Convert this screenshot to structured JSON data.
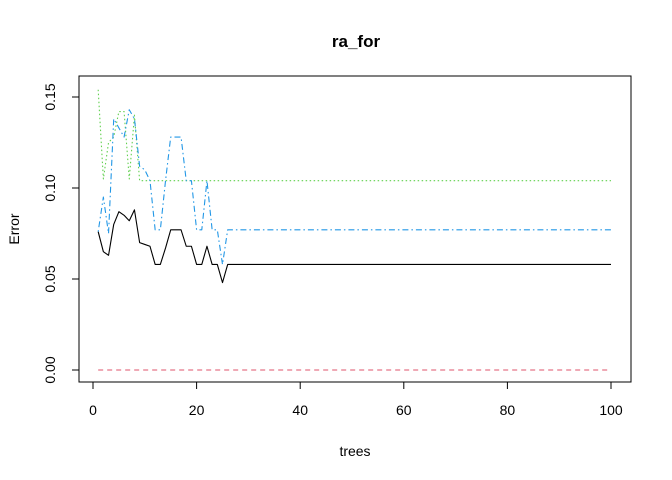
{
  "chart_data": {
    "type": "line",
    "title": "ra_for",
    "xlabel": "trees",
    "ylabel": "Error",
    "xlim": [
      1,
      100
    ],
    "ylim": [
      0,
      0.155
    ],
    "xticks": [
      0,
      20,
      40,
      60,
      80,
      100
    ],
    "yticks": [
      0.0,
      0.05,
      0.1,
      0.15
    ],
    "ytick_labels": [
      "0.00",
      "0.05",
      "0.10",
      "0.15"
    ],
    "grid": false,
    "legend": "none",
    "series": [
      {
        "color": "#000000",
        "dash": "solid",
        "points": [
          [
            1,
            0.076
          ],
          [
            2,
            0.065
          ],
          [
            3,
            0.063
          ],
          [
            4,
            0.08
          ],
          [
            5,
            0.087
          ],
          [
            6,
            0.085
          ],
          [
            7,
            0.082
          ],
          [
            8,
            0.088
          ],
          [
            9,
            0.07
          ],
          [
            10,
            0.069
          ],
          [
            11,
            0.068
          ],
          [
            12,
            0.058
          ],
          [
            13,
            0.058
          ],
          [
            14,
            0.067
          ],
          [
            15,
            0.077
          ],
          [
            16,
            0.077
          ],
          [
            17,
            0.077
          ],
          [
            18,
            0.068
          ],
          [
            19,
            0.068
          ],
          [
            20,
            0.058
          ],
          [
            21,
            0.058
          ],
          [
            22,
            0.068
          ],
          [
            23,
            0.058
          ],
          [
            24,
            0.058
          ],
          [
            25,
            0.048
          ],
          [
            26,
            0.058
          ],
          [
            27,
            0.058
          ],
          [
            100,
            0.058
          ]
        ]
      },
      {
        "color": "#DF536B",
        "dash": "dashed",
        "points": [
          [
            1,
            0.0
          ],
          [
            100,
            0.0
          ]
        ]
      },
      {
        "color": "#61D04F",
        "dash": "dotted",
        "points": [
          [
            1,
            0.154
          ],
          [
            2,
            0.105
          ],
          [
            3,
            0.125
          ],
          [
            4,
            0.128
          ],
          [
            5,
            0.142
          ],
          [
            6,
            0.142
          ],
          [
            7,
            0.105
          ],
          [
            8,
            0.14
          ],
          [
            9,
            0.104
          ],
          [
            100,
            0.104
          ]
        ]
      },
      {
        "color": "#2297E6",
        "dash": "dotdash",
        "points": [
          [
            1,
            0.076
          ],
          [
            2,
            0.095
          ],
          [
            3,
            0.075
          ],
          [
            4,
            0.138
          ],
          [
            5,
            0.133
          ],
          [
            6,
            0.128
          ],
          [
            7,
            0.143
          ],
          [
            8,
            0.138
          ],
          [
            9,
            0.112
          ],
          [
            10,
            0.11
          ],
          [
            11,
            0.104
          ],
          [
            12,
            0.077
          ],
          [
            13,
            0.077
          ],
          [
            14,
            0.104
          ],
          [
            15,
            0.128
          ],
          [
            16,
            0.128
          ],
          [
            17,
            0.128
          ],
          [
            18,
            0.104
          ],
          [
            19,
            0.104
          ],
          [
            20,
            0.077
          ],
          [
            21,
            0.077
          ],
          [
            22,
            0.104
          ],
          [
            23,
            0.077
          ],
          [
            24,
            0.077
          ],
          [
            25,
            0.058
          ],
          [
            26,
            0.077
          ],
          [
            27,
            0.077
          ],
          [
            100,
            0.077
          ]
        ]
      }
    ]
  }
}
